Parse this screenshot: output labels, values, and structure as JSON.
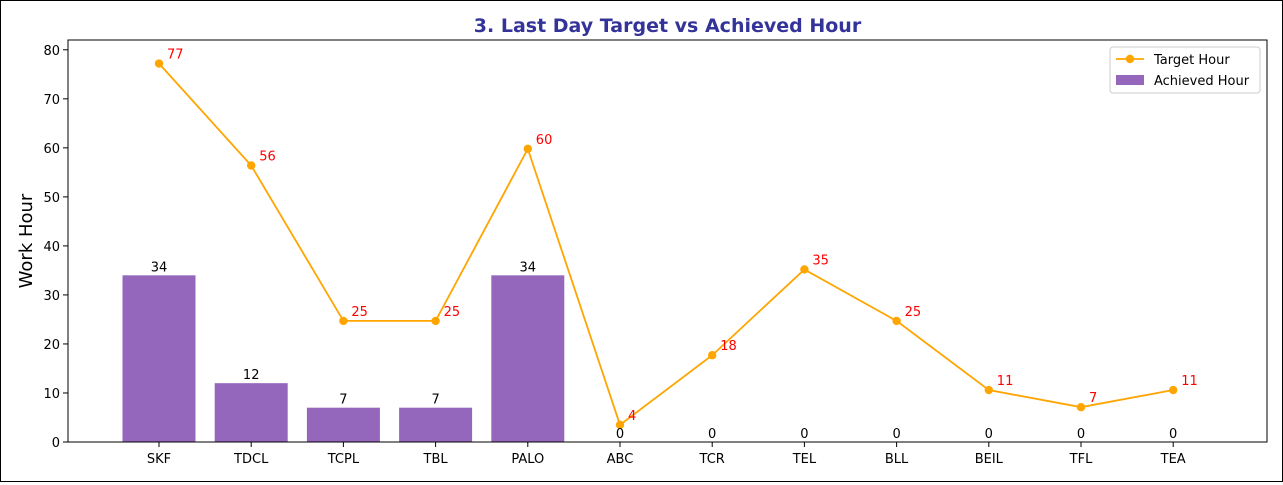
{
  "chart_data": {
    "type": "bar",
    "title": "3. Last Day Target vs Achieved Hour",
    "xlabel": "",
    "ylabel": "Work Hour",
    "ylim": [
      0,
      82
    ],
    "yticks": [
      0,
      10,
      20,
      30,
      40,
      50,
      60,
      70,
      80
    ],
    "categories": [
      "SKF",
      "TDCL",
      "TCPL",
      "TBL",
      "PALO",
      "ABC",
      "TCR",
      "TEL",
      "BLL",
      "BEIL",
      "TFL",
      "TEA"
    ],
    "series": [
      {
        "name": "Target Hour",
        "kind": "line",
        "color": "#FFA500",
        "label_color": "#FF0000",
        "values": [
          77.2,
          56.4,
          24.7,
          24.7,
          59.8,
          3.5,
          17.7,
          35.2,
          24.7,
          10.6,
          7.1,
          10.6
        ],
        "labels": [
          "77",
          "56",
          "25",
          "25",
          "60",
          "4",
          "18",
          "35",
          "25",
          "11",
          "7",
          "11"
        ]
      },
      {
        "name": "Achieved Hour",
        "kind": "bar",
        "color": "#9467BD",
        "values": [
          34,
          12,
          7,
          7,
          34,
          0,
          0,
          0,
          0,
          0,
          0,
          0
        ],
        "labels": [
          "34",
          "12",
          "7",
          "7",
          "34",
          "0",
          "0",
          "0",
          "0",
          "0",
          "0",
          "0"
        ]
      }
    ],
    "grid": false,
    "legend": "top-right"
  }
}
